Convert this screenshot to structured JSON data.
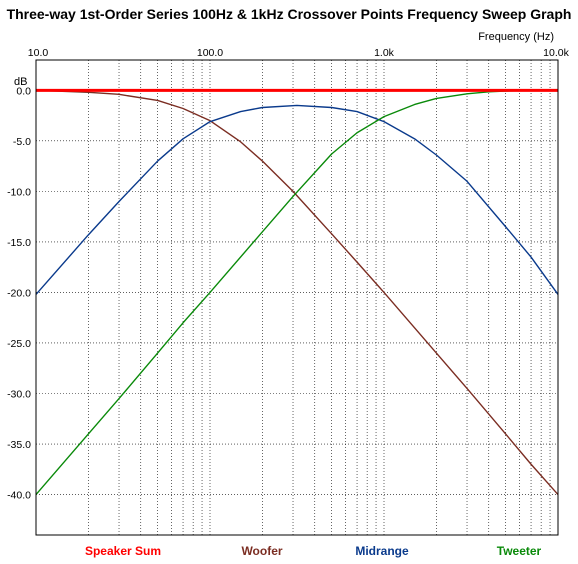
{
  "chart_data": {
    "type": "line",
    "title": "Three-way 1st-Order Series 100Hz & 1kHz Crossover Points Frequency Sweep Graph",
    "xlabel": "Frequency  (Hz)",
    "ylabel": "dB",
    "xscale": "log",
    "xlim": [
      10,
      10000
    ],
    "ylim": [
      -44,
      3
    ],
    "x_ticks": [
      {
        "value": 10,
        "label": "10.0"
      },
      {
        "value": 100,
        "label": "100.0"
      },
      {
        "value": 1000,
        "label": "1.0k"
      },
      {
        "value": 10000,
        "label": "10.0k"
      }
    ],
    "y_ticks": [
      {
        "value": 0,
        "label": "0.0"
      },
      {
        "value": -5,
        "label": "-5.0"
      },
      {
        "value": -10,
        "label": "-10.0"
      },
      {
        "value": -15,
        "label": "-15.0"
      },
      {
        "value": -20,
        "label": "-20.0"
      },
      {
        "value": -25,
        "label": "-25.0"
      },
      {
        "value": -30,
        "label": "-30.0"
      },
      {
        "value": -35,
        "label": "-35.0"
      },
      {
        "value": -40,
        "label": "-40.0"
      }
    ],
    "grid": true,
    "legend_position": "bottom",
    "series": [
      {
        "name": "Speaker Sum",
        "color": "#ff0000",
        "x": [
          10,
          10000
        ],
        "y": [
          0,
          0
        ]
      },
      {
        "name": "Woofer",
        "color": "#7b2d22",
        "x": [
          10,
          20,
          30,
          50,
          70,
          100,
          150,
          200,
          300,
          500,
          700,
          1000,
          2000,
          3000,
          5000,
          7000,
          10000
        ],
        "y": [
          0,
          -0.2,
          -0.4,
          -1.0,
          -1.8,
          -3.0,
          -5.1,
          -7.0,
          -10.0,
          -14.2,
          -17.0,
          -20.0,
          -26.0,
          -29.5,
          -34.0,
          -37.0,
          -40.0
        ]
      },
      {
        "name": "Midrange",
        "color": "#0a3a8c",
        "x": [
          10,
          20,
          30,
          50,
          70,
          100,
          150,
          200,
          316,
          500,
          700,
          1000,
          1500,
          2000,
          3000,
          5000,
          7000,
          10000
        ],
        "y": [
          -20.2,
          -14.3,
          -11.0,
          -7.0,
          -4.8,
          -3.1,
          -2.1,
          -1.7,
          -1.5,
          -1.7,
          -2.1,
          -3.1,
          -4.8,
          -6.4,
          -9.0,
          -13.5,
          -16.5,
          -20.2
        ]
      },
      {
        "name": "Tweeter",
        "color": "#0a8a0a",
        "x": [
          10,
          20,
          30,
          50,
          70,
          100,
          200,
          300,
          500,
          700,
          1000,
          1500,
          2000,
          3000,
          4000,
          5000,
          7000,
          10000
        ],
        "y": [
          -40.0,
          -34.0,
          -30.5,
          -26.0,
          -23.0,
          -20.0,
          -14.0,
          -10.5,
          -6.3,
          -4.2,
          -2.6,
          -1.4,
          -0.8,
          -0.35,
          -0.15,
          -0.07,
          -0.02,
          0
        ]
      }
    ]
  }
}
